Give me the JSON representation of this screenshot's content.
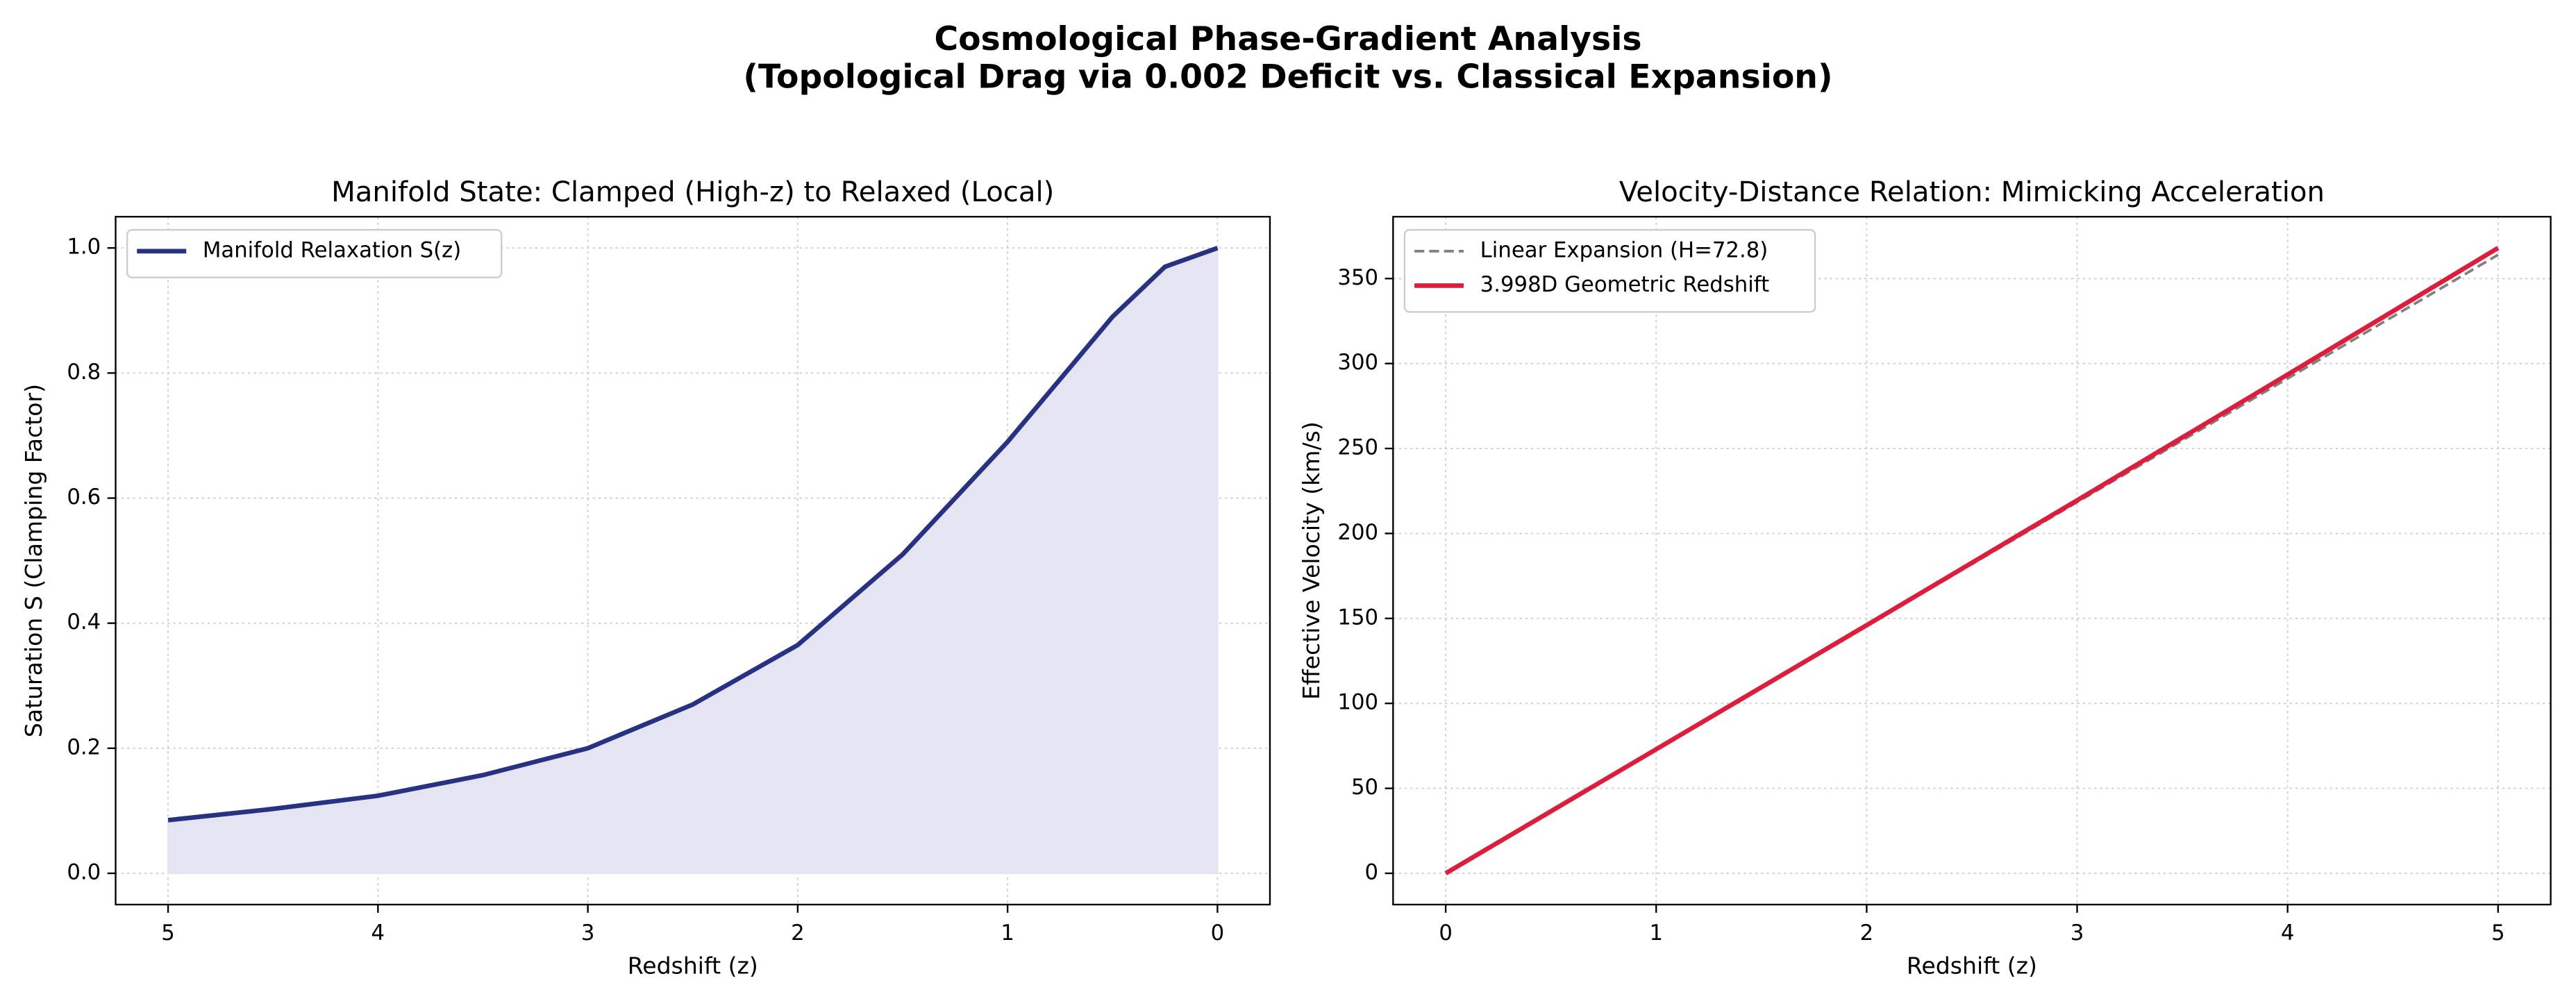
{
  "title": "Cosmological Phase-Gradient Analysis",
  "subtitle": "(Topological Drag via 0.002 Deficit vs. Classical Expansion)",
  "chart_data": [
    {
      "type": "area",
      "title": "Manifold State: Clamped (High-z) to Relaxed (Local)",
      "x_label": "Redshift (z)",
      "y_label": "Saturation S (Clamping Factor)",
      "x": [
        5,
        4.5,
        4,
        3.5,
        3,
        2.5,
        2,
        1.5,
        1,
        0.75,
        0.5,
        0.25,
        0
      ],
      "series": [
        {
          "name": "Manifold Relaxation S(z)",
          "color": "#283282",
          "fill_color": "#e5e4f2",
          "linestyle": "solid",
          "values": [
            0.085,
            0.103,
            0.124,
            0.157,
            0.2,
            0.27,
            0.365,
            0.51,
            0.69,
            0.79,
            0.89,
            0.97,
            1.0
          ]
        }
      ],
      "xlim": [
        5.25,
        -0.25
      ],
      "xticks": [
        5,
        4,
        3,
        2,
        1,
        0
      ],
      "ylim": [
        -0.05,
        1.05
      ],
      "yticks": [
        {
          "value": 0,
          "label": "0.0"
        },
        {
          "value": 0.2,
          "label": "0.2"
        },
        {
          "value": 0.4,
          "label": "0.4"
        },
        {
          "value": 0.6,
          "label": "0.6"
        },
        {
          "value": 0.8,
          "label": "0.8"
        },
        {
          "value": 1,
          "label": "1.0"
        }
      ],
      "grid": true,
      "legend": "upper left"
    },
    {
      "type": "line",
      "title": "Velocity-Distance Relation: Mimicking Acceleration",
      "x_label": "Redshift (z)",
      "y_label": "Effective Velocity (km/s)",
      "x": [
        0,
        1,
        2,
        3,
        4,
        5
      ],
      "series": [
        {
          "name": "Linear Expansion (H=72.8)",
          "color": "#808080",
          "linestyle": "dashed",
          "values": [
            0,
            72.8,
            145.6,
            218.4,
            291.2,
            364
          ]
        },
        {
          "name": "3.998D Geometric Redshift",
          "color": "#dc1e3c",
          "linestyle": "solid",
          "values": [
            0,
            73,
            146,
            219.5,
            293.5,
            368
          ]
        }
      ],
      "xlim": [
        -0.25,
        5.25
      ],
      "xticks": [
        0,
        1,
        2,
        3,
        4,
        5
      ],
      "ylim": [
        -18.4,
        386.4
      ],
      "yticks": [
        0,
        50,
        100,
        150,
        200,
        250,
        300,
        350
      ],
      "grid": true,
      "legend": "upper left"
    }
  ]
}
